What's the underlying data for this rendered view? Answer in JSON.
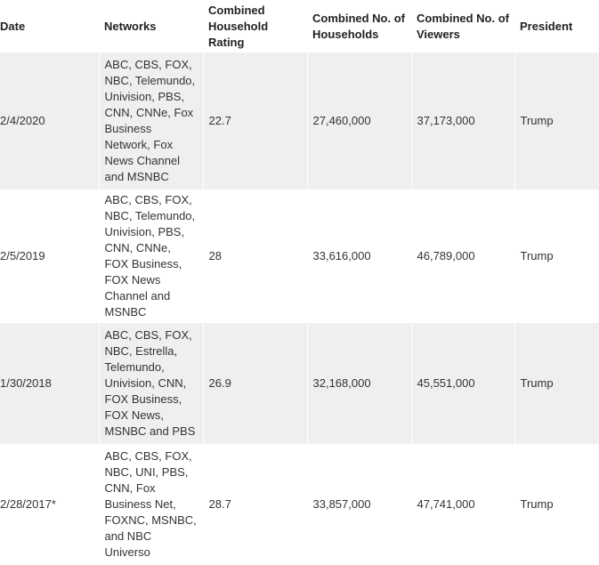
{
  "table": {
    "headers": {
      "date": "Date",
      "networks": "Networks",
      "rating": "Combined Household Rating",
      "households": "Combined No. of Households",
      "viewers": "Combined No. of Viewers",
      "president": "President"
    },
    "rows": [
      {
        "date": "2/4/2020",
        "networks": "ABC, CBS, FOX, NBC, Telemundo, Univision, PBS, CNN, CNNe, Fox Business Network, Fox News Channel and MSNBC",
        "rating": "22.7",
        "households": "27,460,000",
        "viewers": "37,173,000",
        "president": "Trump"
      },
      {
        "date": "2/5/2019",
        "networks": "ABC, CBS, FOX, NBC, Telemundo, Univision, PBS, CNN, CNNe, FOX Business, FOX News Channel and MSNBC",
        "rating": "28",
        "households": "33,616,000",
        "viewers": "46,789,000",
        "president": "Trump"
      },
      {
        "date": "1/30/2018",
        "networks": "ABC, CBS, FOX, NBC, Estrella, Telemundo, Univision, CNN, FOX Business, FOX News, MSNBC and PBS",
        "rating": "26.9",
        "households": "32,168,000",
        "viewers": "45,551,000",
        "president": "Trump"
      },
      {
        "date": "2/28/2017*",
        "networks": "ABC, CBS, FOX, NBC, UNI, PBS, CNN, Fox Business Net, FOXNC, MSNBC, and NBC Universo",
        "rating": "28.7",
        "households": "33,857,000",
        "viewers": "47,741,000",
        "president": "Trump"
      }
    ]
  }
}
